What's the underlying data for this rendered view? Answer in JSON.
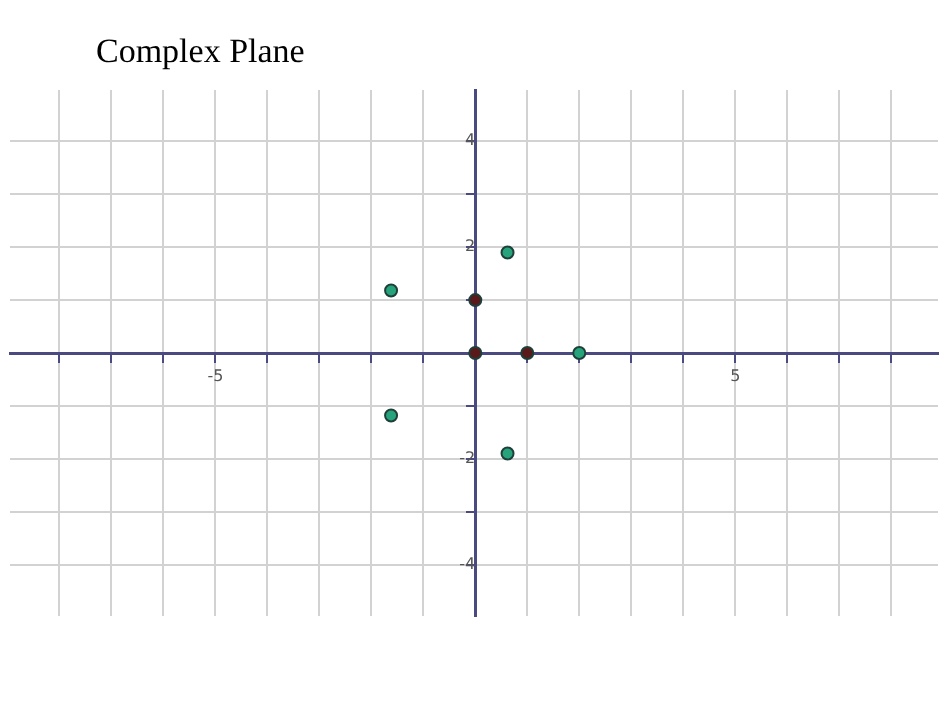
{
  "chart_data": {
    "type": "scatter",
    "title": "Complex Plane",
    "series": [
      {
        "color": "#27a37c",
        "x": [
          2,
          0.62,
          -1.62,
          -1.62,
          0.62
        ],
        "values": [
          0,
          1.9,
          1.18,
          -1.18,
          -1.9
        ]
      },
      {
        "color": "#5a1a1a",
        "x": [
          0,
          1,
          0
        ],
        "values": [
          0,
          0,
          1
        ]
      }
    ],
    "xlim": [
      -8.95,
      8.9
    ],
    "ylim": [
      -4.97,
      4.97
    ],
    "xticks": [
      {
        "value": -8,
        "label": null
      },
      {
        "value": -7,
        "label": null
      },
      {
        "value": -6,
        "label": null
      },
      -5,
      {
        "value": -4,
        "label": null
      },
      {
        "value": -3,
        "label": null
      },
      {
        "value": -2,
        "label": null
      },
      {
        "value": -1,
        "label": null
      },
      {
        "value": 1,
        "label": null
      },
      {
        "value": 2,
        "label": null
      },
      {
        "value": 3,
        "label": null
      },
      {
        "value": 4,
        "label": null
      },
      5,
      {
        "value": 6,
        "label": null
      },
      {
        "value": 7,
        "label": null
      },
      {
        "value": 8,
        "label": null
      }
    ],
    "yticks": [
      -4,
      {
        "value": -3,
        "label": null
      },
      -2,
      {
        "value": -1,
        "label": null
      },
      {
        "value": 1,
        "label": null
      },
      2,
      {
        "value": 3,
        "label": null
      },
      4
    ],
    "grid": true,
    "legend": false,
    "marker": "circle"
  }
}
